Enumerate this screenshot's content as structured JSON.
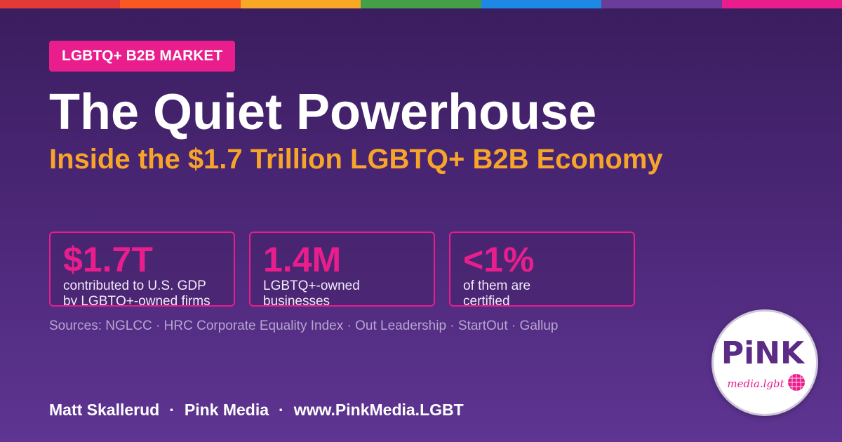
{
  "colors": {
    "rainbow": [
      "#e53935",
      "#fb5722",
      "#f9a825",
      "#43a047",
      "#1e88e5",
      "#6a3d9a",
      "#e91e8c"
    ],
    "accent_pink": "#e91e8c",
    "accent_orange": "#f7a52a",
    "background_top": "#3a1d5e",
    "background_bottom": "#5e3592"
  },
  "badge": {
    "label": "LGBTQ+ B2B MARKET"
  },
  "title": "The Quiet Powerhouse",
  "subtitle": "Inside the $1.7 Trillion LGBTQ+ B2B Economy",
  "stats": [
    {
      "value": "$1.7T",
      "label_line1": "contributed to U.S. GDP",
      "label_line2": "by LGBTQ+-owned firms"
    },
    {
      "value": "1.4M",
      "label_line1": "LGBTQ+-owned",
      "label_line2": "businesses"
    },
    {
      "value": "<1%",
      "label_line1": "of them are",
      "label_line2": "certified"
    }
  ],
  "sources": "Sources: NGLCC · HRC Corporate Equality Index · Out Leadership · StartOut · Gallup",
  "footer": {
    "author": "Matt Skallerud",
    "separator": "·",
    "company": "Pink Media",
    "website": "www.PinkMedia.LGBT"
  },
  "logo": {
    "wordmark": "PiNK",
    "tagline": "media.lgbt",
    "icon": "pink-media-logo"
  }
}
